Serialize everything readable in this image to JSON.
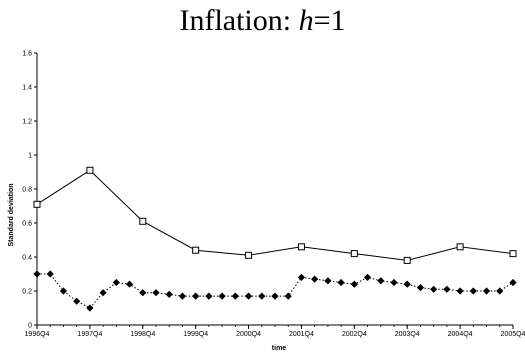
{
  "title": {
    "prefix": "Inflation: ",
    "italic": "h",
    "suffix": "=1"
  },
  "chart_data": {
    "type": "line",
    "title": "Inflation: h=1",
    "xlabel": "time",
    "ylabel": "Standard deviation",
    "ylim": [
      0,
      1.6
    ],
    "yticks": [
      "0",
      "0.2",
      "0.4",
      "0.6",
      "0.8",
      "1",
      "1.2",
      "1.4",
      "1.6"
    ],
    "xlim": [
      0,
      36
    ],
    "xtick_labels": [
      "1996Q4",
      "1997Q4",
      "1998Q4",
      "1999Q4",
      "2000Q4",
      "2001Q4",
      "2002Q4",
      "2003Q4",
      "2004Q4",
      "2005Q4"
    ],
    "xtick_positions": [
      0,
      4,
      8,
      12,
      16,
      20,
      24,
      28,
      32,
      36
    ],
    "grid": false,
    "series": [
      {
        "marker": "open-square",
        "line": "solid",
        "color": "#000000",
        "points": [
          {
            "x": 0,
            "y": 0.71
          },
          {
            "x": 4,
            "y": 0.91
          },
          {
            "x": 8,
            "y": 0.61
          },
          {
            "x": 12,
            "y": 0.44
          },
          {
            "x": 16,
            "y": 0.41
          },
          {
            "x": 20,
            "y": 0.46
          },
          {
            "x": 24,
            "y": 0.42
          },
          {
            "x": 28,
            "y": 0.38
          },
          {
            "x": 32,
            "y": 0.46
          },
          {
            "x": 36,
            "y": 0.42
          }
        ]
      },
      {
        "marker": "filled-diamond",
        "line": "dotted",
        "color": "#000000",
        "points": [
          {
            "x": 0,
            "y": 0.3
          },
          {
            "x": 1,
            "y": 0.3
          },
          {
            "x": 2,
            "y": 0.2
          },
          {
            "x": 3,
            "y": 0.14
          },
          {
            "x": 4,
            "y": 0.1
          },
          {
            "x": 5,
            "y": 0.19
          },
          {
            "x": 6,
            "y": 0.25
          },
          {
            "x": 7,
            "y": 0.24
          },
          {
            "x": 8,
            "y": 0.19
          },
          {
            "x": 9,
            "y": 0.19
          },
          {
            "x": 10,
            "y": 0.18
          },
          {
            "x": 11,
            "y": 0.17
          },
          {
            "x": 12,
            "y": 0.17
          },
          {
            "x": 13,
            "y": 0.17
          },
          {
            "x": 14,
            "y": 0.17
          },
          {
            "x": 15,
            "y": 0.17
          },
          {
            "x": 16,
            "y": 0.17
          },
          {
            "x": 17,
            "y": 0.17
          },
          {
            "x": 18,
            "y": 0.17
          },
          {
            "x": 19,
            "y": 0.17
          },
          {
            "x": 20,
            "y": 0.28
          },
          {
            "x": 21,
            "y": 0.27
          },
          {
            "x": 22,
            "y": 0.26
          },
          {
            "x": 23,
            "y": 0.25
          },
          {
            "x": 24,
            "y": 0.24
          },
          {
            "x": 25,
            "y": 0.28
          },
          {
            "x": 26,
            "y": 0.26
          },
          {
            "x": 27,
            "y": 0.25
          },
          {
            "x": 28,
            "y": 0.24
          },
          {
            "x": 29,
            "y": 0.22
          },
          {
            "x": 30,
            "y": 0.21
          },
          {
            "x": 31,
            "y": 0.21
          },
          {
            "x": 32,
            "y": 0.2
          },
          {
            "x": 33,
            "y": 0.2
          },
          {
            "x": 34,
            "y": 0.2
          },
          {
            "x": 35,
            "y": 0.2
          },
          {
            "x": 36,
            "y": 0.25
          }
        ]
      }
    ]
  }
}
